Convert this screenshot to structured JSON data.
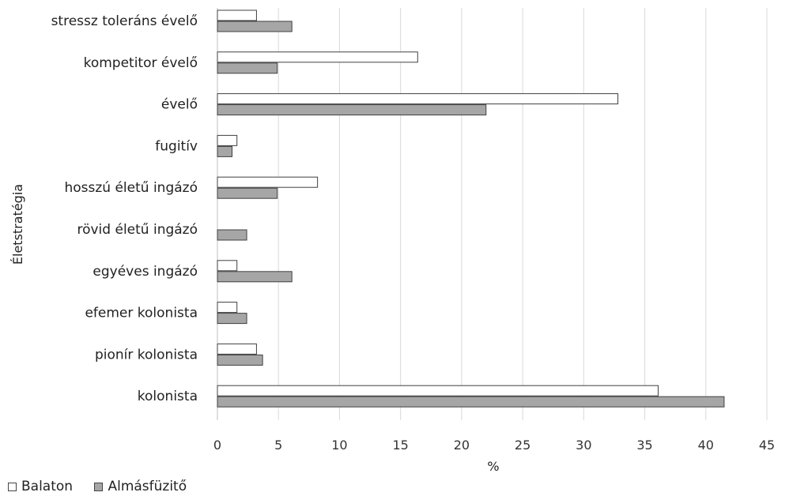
{
  "chart_data": {
    "type": "bar",
    "orientation": "horizontal",
    "categories": [
      "stressz toleráns évelő",
      "kompetitor évelő",
      "évelő",
      "fugitív",
      "hosszú életű ingázó",
      "rövid életű ingázó",
      "egyéves ingázó",
      "efemer kolonista",
      "pionír kolonista",
      "kolonista"
    ],
    "series": [
      {
        "name": "Balaton",
        "color": "#ffffff",
        "values": [
          3.2,
          16.4,
          32.8,
          1.6,
          8.2,
          0,
          1.6,
          1.6,
          3.2,
          36.1
        ]
      },
      {
        "name": "Almásfüzitő",
        "color": "#a6a6a6",
        "values": [
          6.1,
          4.9,
          22.0,
          1.2,
          4.9,
          2.4,
          6.1,
          2.4,
          3.7,
          41.5
        ]
      }
    ],
    "xlim": [
      0,
      45
    ],
    "xticks": [
      "0",
      "5",
      "10",
      "15",
      "20",
      "25",
      "30",
      "35",
      "40",
      "45"
    ],
    "xlabel": "%",
    "ylabel": "Életstratégia",
    "grid": true,
    "legend_position": "bottom-left"
  }
}
